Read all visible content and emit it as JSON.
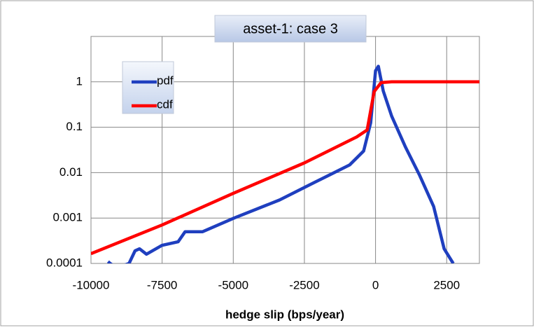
{
  "chart_data": {
    "type": "line",
    "title": "asset-1: case 3",
    "x_label": "hedge slip (bps/year)",
    "log_y": true,
    "grid": true,
    "legend": "upper left",
    "xlim": [
      -10000,
      3650
    ],
    "xticks": [
      -10000,
      -7500,
      -5000,
      -2500,
      0,
      2500
    ],
    "ylim": [
      0.0001,
      10
    ],
    "yticks": [
      0.0001,
      0.001,
      0.01,
      0.1,
      1
    ],
    "series": [
      {
        "name": "pdf",
        "color": "#1f3fbf",
        "x": [
          -9400,
          -9326,
          -9100,
          -8661,
          -8450,
          -8292,
          -8050,
          -7505,
          -6939,
          -6693,
          -6078,
          -4970,
          -3371,
          -2141,
          -910,
          -418,
          -172,
          0,
          98,
          270,
          566,
          1058,
          1550,
          2042,
          2411,
          2731
        ],
        "values": [
          0.00011,
          0.0001,
          8e-05,
          0.0001,
          0.00019,
          0.00021,
          0.00016,
          0.00025,
          0.0003,
          0.0005,
          0.0005,
          0.001,
          0.0025,
          0.0061,
          0.0148,
          0.03,
          0.124,
          1.76,
          2.2,
          0.63,
          0.176,
          0.036,
          0.0087,
          0.0018,
          0.00021,
          0.0001
        ]
      },
      {
        "name": "cdf",
        "color": "#ff0000",
        "x": [
          -10000,
          -7505,
          -5000,
          -2500,
          -664,
          -295,
          -49,
          197,
          566,
          3650
        ],
        "values": [
          0.000164,
          0.0007,
          0.0035,
          0.0164,
          0.061,
          0.087,
          0.61,
          0.96,
          1,
          1
        ]
      }
    ]
  }
}
